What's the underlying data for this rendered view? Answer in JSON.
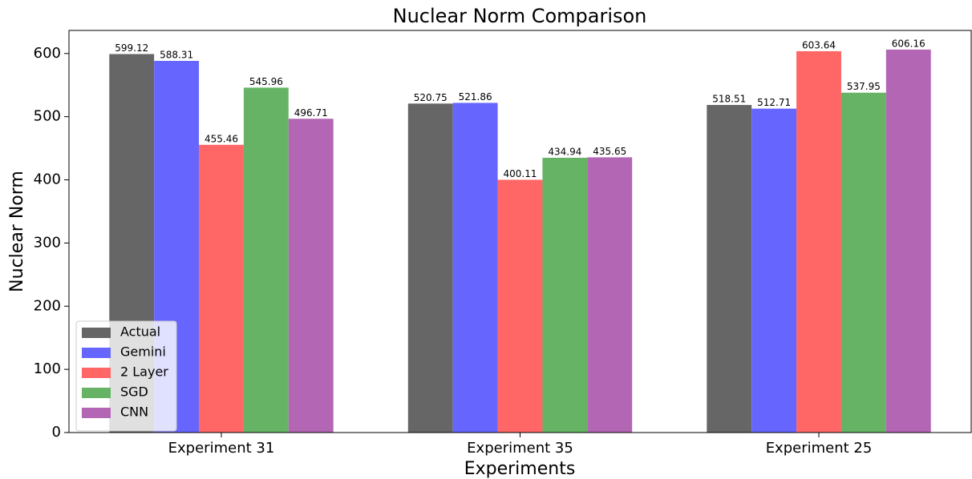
{
  "chart_data": {
    "type": "bar",
    "title": "Nuclear Norm Comparison",
    "x_label": "Experiments",
    "y_label": "Nuclear Norm",
    "categories": [
      "Experiment 31",
      "Experiment 35",
      "Experiment 25"
    ],
    "series": [
      {
        "name": "Actual",
        "color": "#666666",
        "values": [
          599.12,
          520.75,
          518.51
        ]
      },
      {
        "name": "Gemini",
        "color": "#6666ff",
        "values": [
          588.31,
          521.86,
          512.71
        ]
      },
      {
        "name": "2 Layer",
        "color": "#ff6666",
        "values": [
          455.46,
          400.11,
          603.64
        ]
      },
      {
        "name": "SGD",
        "color": "#66b366",
        "values": [
          545.96,
          434.94,
          537.95
        ]
      },
      {
        "name": "CNN",
        "color": "#b366b3",
        "values": [
          496.71,
          435.65,
          606.16
        ]
      }
    ],
    "ylim": [
      0,
      636.5
    ],
    "yticks": [
      0,
      100,
      200,
      300,
      400,
      500,
      600
    ],
    "legend": "lower left"
  }
}
